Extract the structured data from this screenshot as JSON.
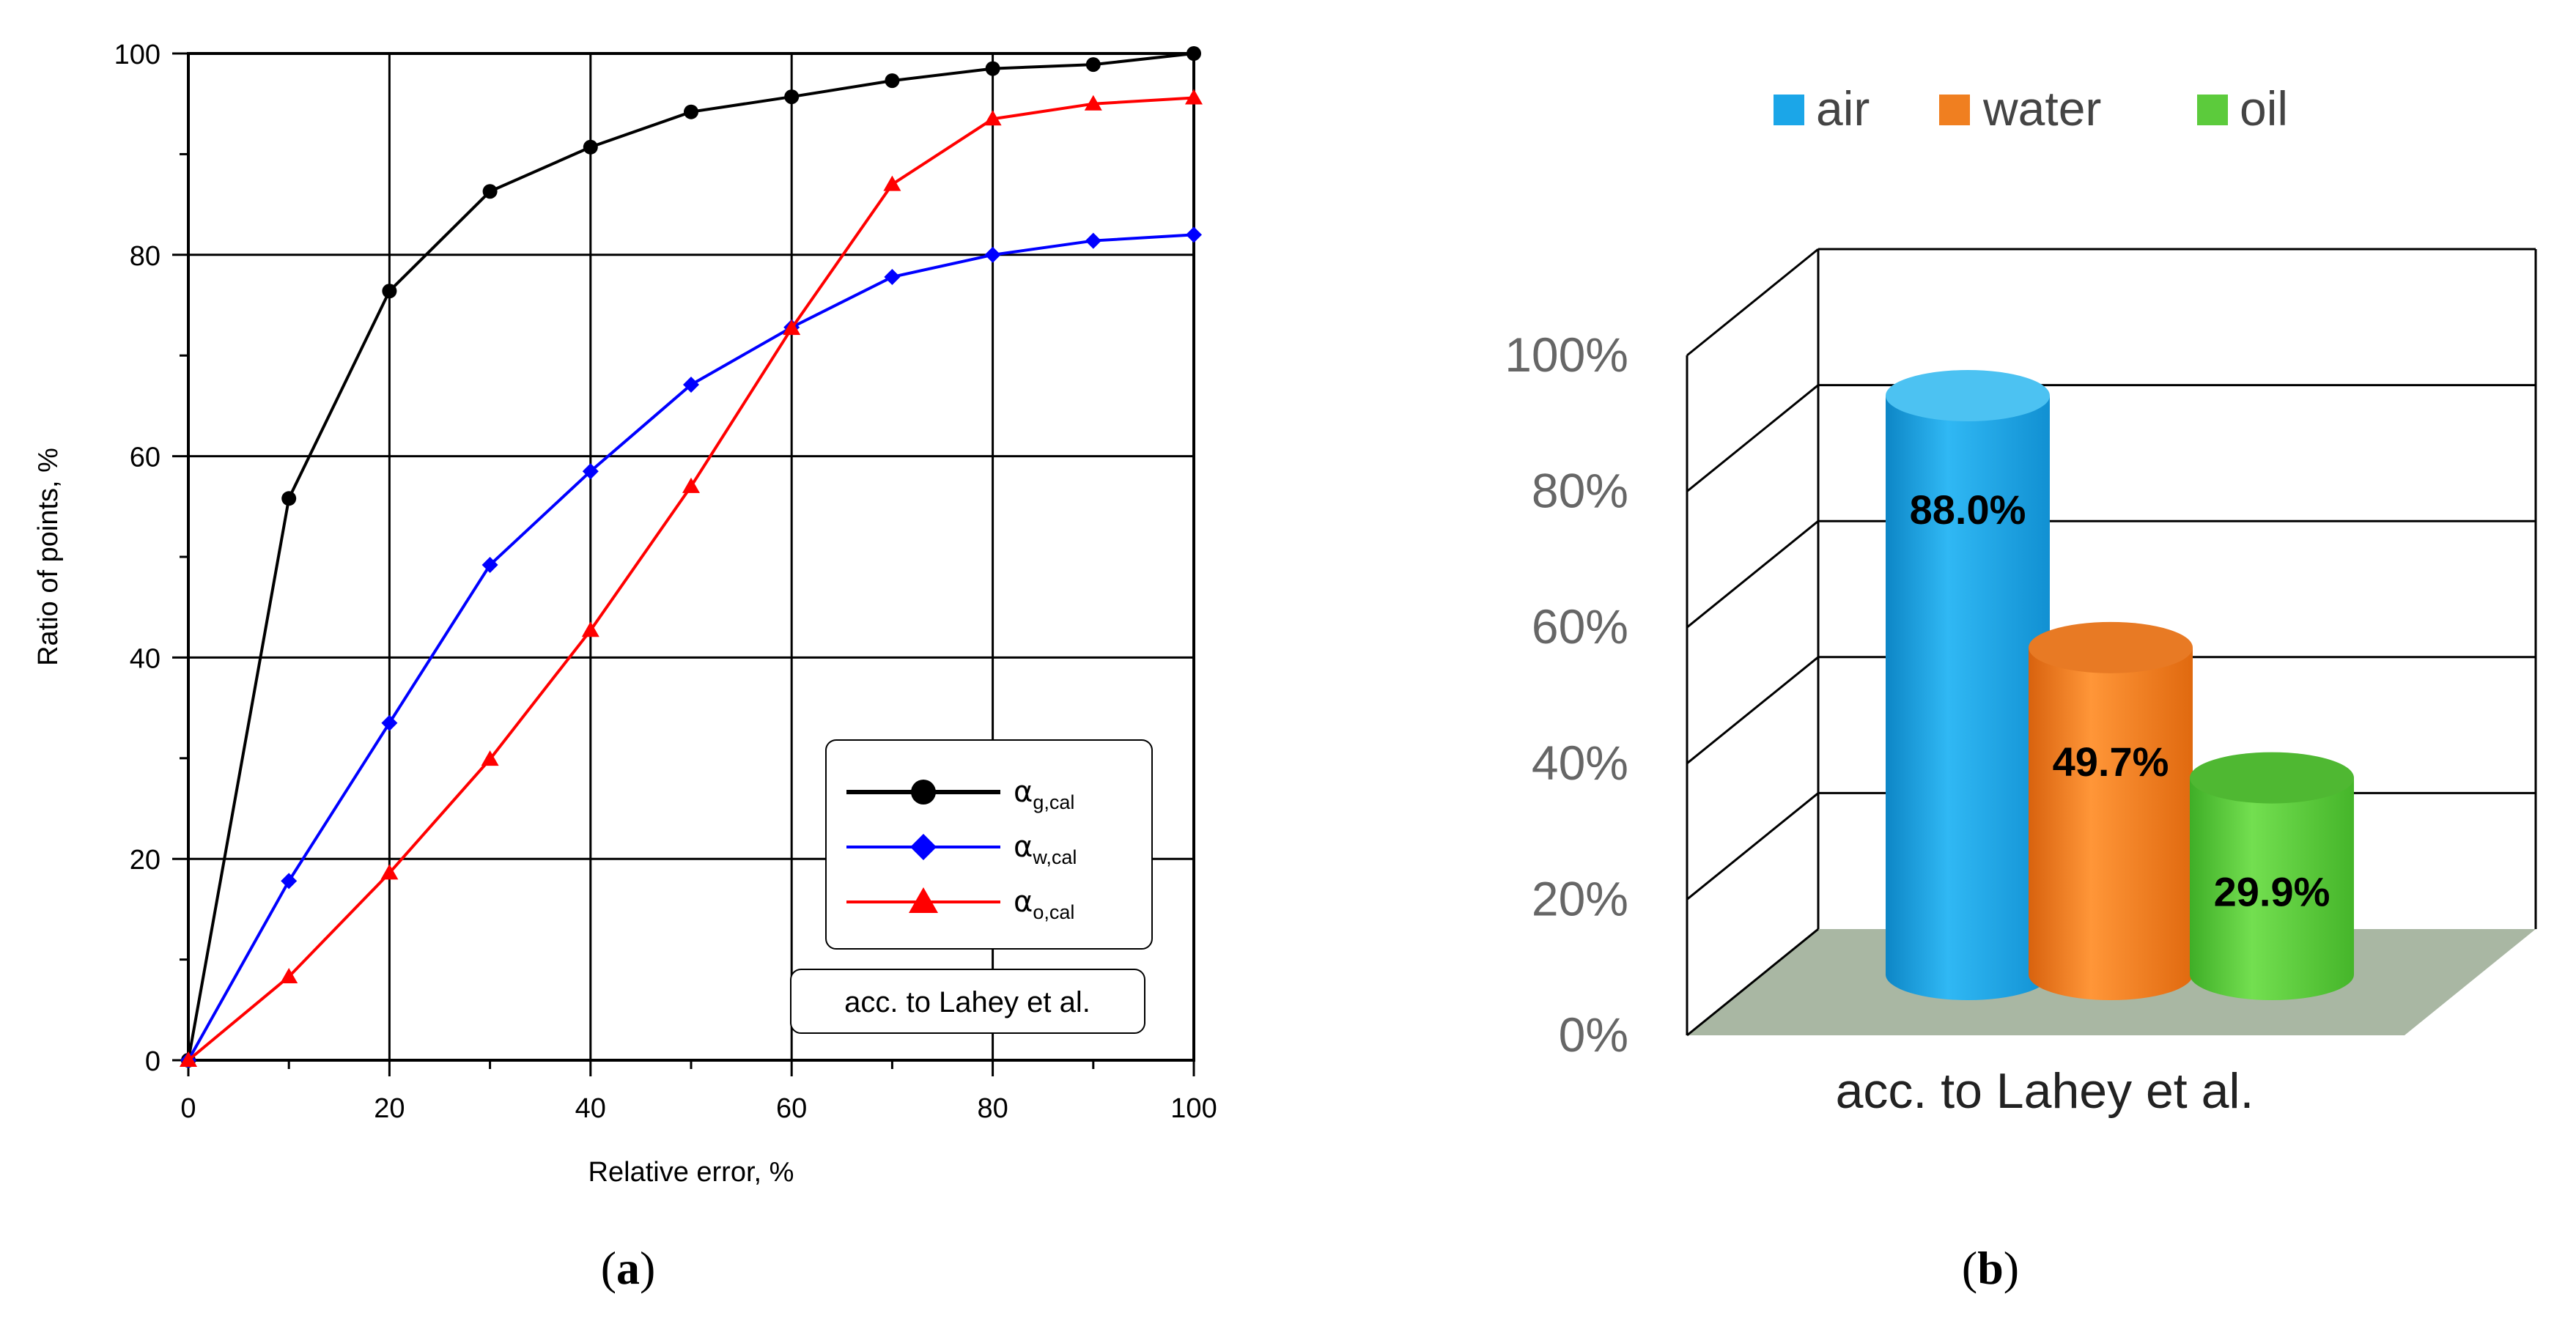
{
  "panel_a": {
    "caption_open": "(",
    "caption_letter": "a",
    "caption_close": ")",
    "legend_note": "acc. to Lahey et al.",
    "legend_symbol": "α",
    "legend_subscripts": [
      "g,cal",
      "w,cal",
      "o,cal"
    ]
  },
  "panel_b": {
    "caption_open": "(",
    "caption_letter": "b",
    "caption_close": ")",
    "category_label": "acc. to Lahey et al."
  },
  "colors": {
    "black": "#000000",
    "blue": "#0000ff",
    "red": "#ff0000",
    "air": "#1ba6e8",
    "water": "#f07f20",
    "oil": "#5ccb3c",
    "floor": "#a9b7a3"
  },
  "chart_data": [
    {
      "type": "line",
      "title": "",
      "xlabel": "Relative error, %",
      "ylabel": "Ratio of points, %",
      "xlim": [
        0,
        100
      ],
      "ylim": [
        0,
        100
      ],
      "x_ticks": [
        "0",
        "20",
        "40",
        "60",
        "80",
        "100"
      ],
      "y_ticks": [
        "0",
        "20",
        "40",
        "60",
        "80",
        "100"
      ],
      "grid": true,
      "legend_position": "bottom-right",
      "x": [
        0,
        10,
        20,
        30,
        40,
        50,
        60,
        70,
        80,
        90,
        100
      ],
      "series": [
        {
          "name": "α g,cal",
          "color": "#000000",
          "marker": "circle",
          "values": [
            0,
            55.8,
            76.4,
            86.3,
            90.7,
            94.2,
            95.7,
            97.3,
            98.5,
            98.9,
            100
          ]
        },
        {
          "name": "α w,cal",
          "color": "#0000ff",
          "marker": "diamond",
          "values": [
            0,
            17.8,
            33.5,
            49.2,
            58.5,
            67.1,
            72.8,
            77.8,
            80.0,
            81.4,
            82.0
          ]
        },
        {
          "name": "α o,cal",
          "color": "#ff0000",
          "marker": "triangle",
          "values": [
            0,
            8.3,
            18.6,
            29.9,
            42.7,
            57.0,
            72.7,
            87.0,
            93.5,
            95.0,
            95.6
          ]
        }
      ]
    },
    {
      "type": "bar",
      "title": "",
      "categories": [
        "acc. to Lahey et al."
      ],
      "series": [
        {
          "name": "air",
          "color": "#1ba6e8",
          "values": [
            88.0
          ],
          "label": "88.0%"
        },
        {
          "name": "water",
          "color": "#f07f20",
          "values": [
            49.7
          ],
          "label": "49.7%"
        },
        {
          "name": "oil",
          "color": "#5ccb3c",
          "values": [
            29.9
          ],
          "label": "29.9%"
        }
      ],
      "ylim": [
        0,
        100
      ],
      "y_ticks": [
        "0%",
        "20%",
        "40%",
        "60%",
        "80%",
        "100%"
      ],
      "legend_position": "top",
      "grid": true
    }
  ]
}
